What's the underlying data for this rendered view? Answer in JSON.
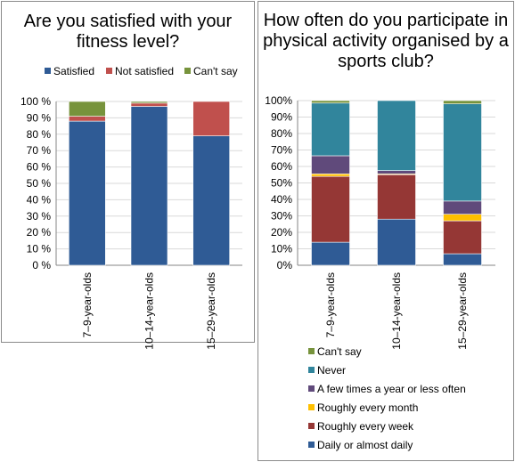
{
  "chart_data": [
    {
      "type": "bar",
      "stacked": true,
      "title": "Are you satisfied with your fitness level?",
      "categories": [
        "7–9-year-olds",
        "10–14-year-olds",
        "15–29-year-olds"
      ],
      "series": [
        {
          "name": "Satisfied",
          "color": "#2f5b95",
          "values": [
            88,
            97,
            79
          ]
        },
        {
          "name": "Not satisfied",
          "color": "#c0504d",
          "values": [
            3,
            2,
            21
          ]
        },
        {
          "name": "Can't say",
          "color": "#77933c",
          "values": [
            9,
            1,
            0
          ]
        }
      ],
      "yticks": [
        "0 %",
        "10 %",
        "20 %",
        "30 %",
        "40 %",
        "50 %",
        "60 %",
        "70 %",
        "80 %",
        "90 %",
        "100 %"
      ],
      "ylim": [
        0,
        100
      ],
      "grid": true,
      "legend_position": "top"
    },
    {
      "type": "bar",
      "stacked": true,
      "title": "How often do you participate in physical activity organised by a sports club?",
      "categories": [
        "7–9-year-olds",
        "10–14-year-olds",
        "15–29-year-olds"
      ],
      "series": [
        {
          "name": "Daily or almost daily",
          "color": "#2f5b95",
          "values": [
            14,
            28,
            7
          ]
        },
        {
          "name": "Roughly every week",
          "color": "#953735",
          "values": [
            40,
            27,
            20
          ]
        },
        {
          "name": "Roughly every month",
          "color": "#ffc000",
          "values": [
            1.5,
            0.5,
            4
          ]
        },
        {
          "name": "A few times a year or less often",
          "color": "#604a7b",
          "values": [
            11,
            2,
            8
          ]
        },
        {
          "name": "Never",
          "color": "#31859c",
          "values": [
            32,
            42.5,
            59
          ]
        },
        {
          "name": "Can't say",
          "color": "#77933c",
          "values": [
            1.5,
            0,
            2
          ]
        }
      ],
      "yticks": [
        "0%",
        "10%",
        "20%",
        "30%",
        "40%",
        "50%",
        "60%",
        "70%",
        "80%",
        "90%",
        "100%"
      ],
      "ylim": [
        0,
        100
      ],
      "grid": true,
      "legend_position": "bottom"
    }
  ]
}
